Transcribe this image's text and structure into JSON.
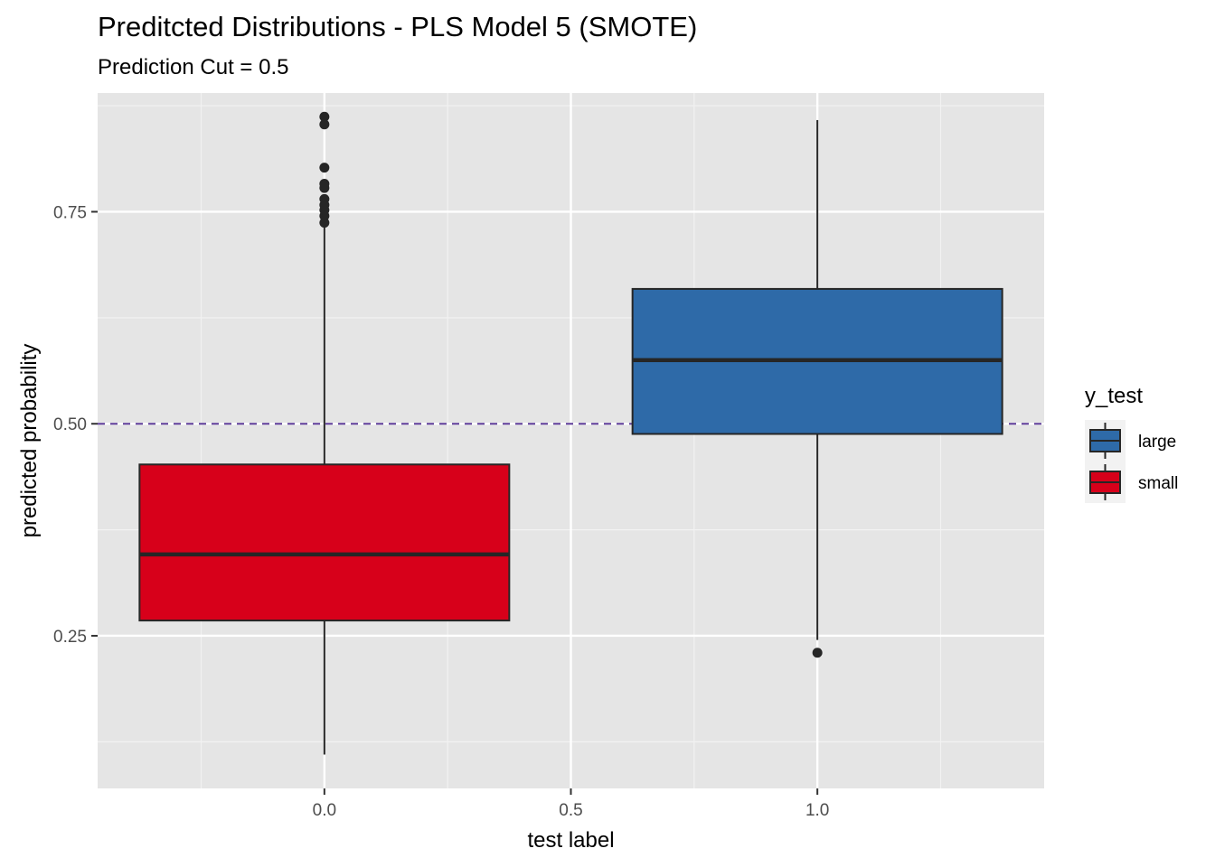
{
  "chart_data": {
    "type": "boxplot",
    "title": "Preditcted Distributions - PLS Model 5 (SMOTE)",
    "subtitle": "Prediction Cut = 0.5",
    "xlabel": "test label",
    "ylabel": "predicted probability",
    "xlim": [
      -0.46,
      1.46
    ],
    "ylim": [
      0.07,
      0.89
    ],
    "x_ticks": [
      0.0,
      0.5,
      1.0
    ],
    "x_tick_labels": [
      "0.0",
      "0.5",
      "1.0"
    ],
    "y_ticks": [
      0.25,
      0.5,
      0.75
    ],
    "y_tick_labels": [
      "0.25",
      "0.50",
      "0.75"
    ],
    "cutoff_line": {
      "y": 0.5,
      "style": "dashed",
      "color": "#5e3c99"
    },
    "boxes": [
      {
        "name": "small",
        "x": 0.0,
        "halfwidth": 0.375,
        "whisker_low": 0.11,
        "q1": 0.268,
        "median": 0.346,
        "q3": 0.452,
        "whisker_high": 0.733,
        "outliers": [
          0.737,
          0.745,
          0.752,
          0.758,
          0.765,
          0.778,
          0.783,
          0.802,
          0.853,
          0.862
        ],
        "fill": "#d7001a"
      },
      {
        "name": "large",
        "x": 1.0,
        "halfwidth": 0.375,
        "whisker_low": 0.245,
        "q1": 0.488,
        "median": 0.575,
        "q3": 0.659,
        "whisker_high": 0.858,
        "outliers": [
          0.23
        ],
        "fill": "#2e6aa8"
      }
    ],
    "legend": {
      "title": "y_test",
      "position": "right",
      "entries": [
        {
          "label": "large",
          "color": "#2e6aa8"
        },
        {
          "label": "small",
          "color": "#d7001a"
        }
      ]
    },
    "grid": true,
    "panel_background": "#e5e5e5"
  }
}
